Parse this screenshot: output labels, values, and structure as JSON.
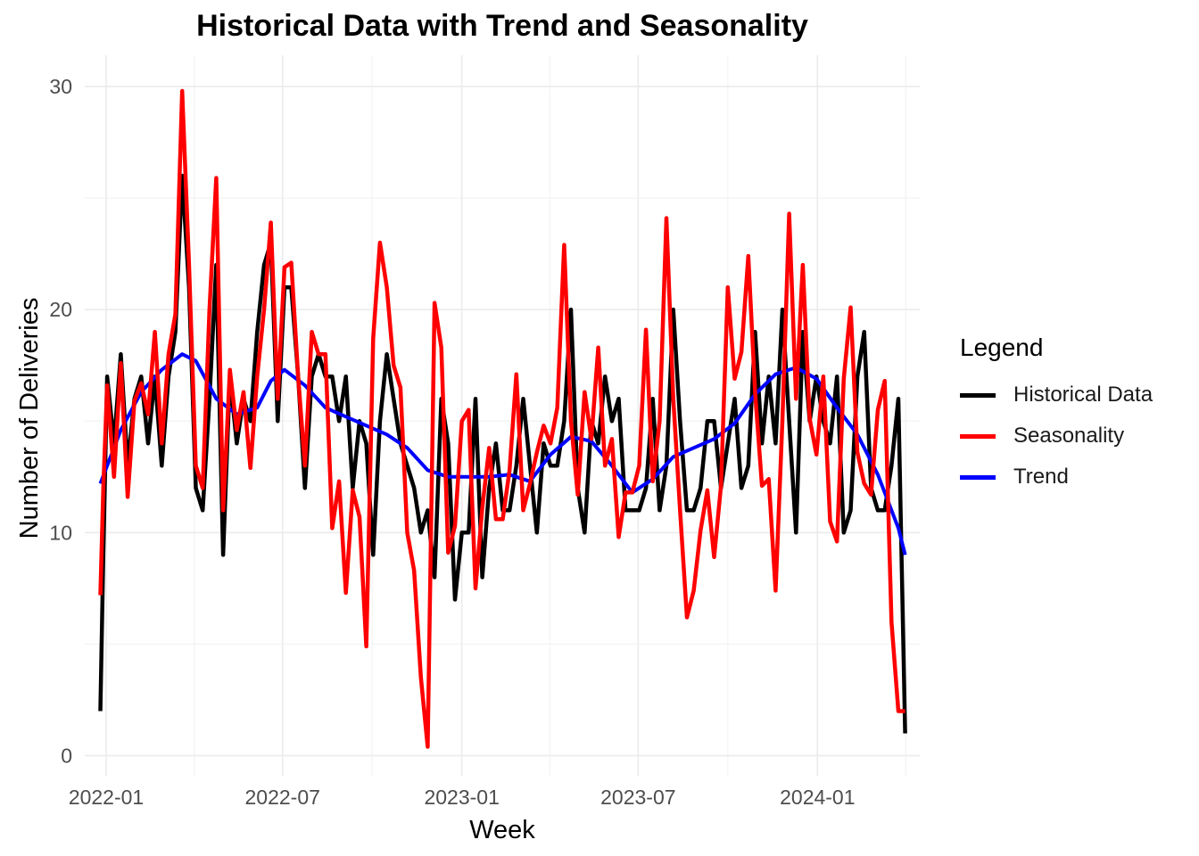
{
  "chart_data": {
    "type": "line",
    "title": "Historical Data with Trend and Seasonality",
    "xlabel": "Week",
    "ylabel": "Number of Deliveries",
    "x_ticks": [
      "2022-01",
      "2022-07",
      "2023-01",
      "2023-07",
      "2024-01"
    ],
    "y_ticks": [
      0,
      10,
      20,
      30
    ],
    "ylim": [
      -0.9,
      31.4
    ],
    "xlim": [
      "2021-12-10",
      "2024-04-15"
    ],
    "grid": true,
    "legend": {
      "title": "Legend",
      "placement": "right",
      "entries": [
        "Historical Data",
        "Seasonality",
        "Trend"
      ]
    },
    "series": [
      {
        "name": "Historical Data",
        "color": "#000000",
        "points": [
          [
            "2021-12-26",
            2
          ],
          [
            "2021-12-29",
            9
          ],
          [
            "2022-01-02",
            17
          ],
          [
            "2022-01-09",
            14
          ],
          [
            "2022-01-16",
            18
          ],
          [
            "2022-01-23",
            13
          ],
          [
            "2022-01-30",
            16
          ],
          [
            "2022-02-06",
            17
          ],
          [
            "2022-02-13",
            14
          ],
          [
            "2022-02-20",
            17
          ],
          [
            "2022-02-27",
            13
          ],
          [
            "2022-03-06",
            17
          ],
          [
            "2022-03-13",
            19
          ],
          [
            "2022-03-20",
            26
          ],
          [
            "2022-03-27",
            21
          ],
          [
            "2022-04-03",
            12
          ],
          [
            "2022-04-10",
            11
          ],
          [
            "2022-04-17",
            16
          ],
          [
            "2022-04-24",
            22
          ],
          [
            "2022-05-01",
            9
          ],
          [
            "2022-05-08",
            17
          ],
          [
            "2022-05-15",
            14
          ],
          [
            "2022-05-22",
            16
          ],
          [
            "2022-05-29",
            15
          ],
          [
            "2022-06-05",
            19
          ],
          [
            "2022-06-12",
            22
          ],
          [
            "2022-06-19",
            23
          ],
          [
            "2022-06-26",
            15
          ],
          [
            "2022-07-03",
            21
          ],
          [
            "2022-07-10",
            21
          ],
          [
            "2022-07-17",
            17
          ],
          [
            "2022-07-24",
            12
          ],
          [
            "2022-07-31",
            17
          ],
          [
            "2022-08-07",
            18
          ],
          [
            "2022-08-14",
            17
          ],
          [
            "2022-08-21",
            17
          ],
          [
            "2022-08-28",
            15
          ],
          [
            "2022-09-04",
            17
          ],
          [
            "2022-09-11",
            12
          ],
          [
            "2022-09-18",
            15
          ],
          [
            "2022-09-25",
            14
          ],
          [
            "2022-10-02",
            9
          ],
          [
            "2022-10-09",
            15
          ],
          [
            "2022-10-16",
            18
          ],
          [
            "2022-10-23",
            16
          ],
          [
            "2022-10-30",
            14
          ],
          [
            "2022-11-06",
            13
          ],
          [
            "2022-11-13",
            12
          ],
          [
            "2022-11-20",
            10
          ],
          [
            "2022-11-27",
            11
          ],
          [
            "2022-12-04",
            8
          ],
          [
            "2022-12-11",
            16
          ],
          [
            "2022-12-18",
            14
          ],
          [
            "2022-12-25",
            7
          ],
          [
            "2023-01-01",
            10
          ],
          [
            "2023-01-08",
            10
          ],
          [
            "2023-01-15",
            16
          ],
          [
            "2023-01-22",
            8
          ],
          [
            "2023-01-29",
            12
          ],
          [
            "2023-02-05",
            14
          ],
          [
            "2023-02-12",
            11
          ],
          [
            "2023-02-19",
            11
          ],
          [
            "2023-02-26",
            13
          ],
          [
            "2023-03-05",
            16
          ],
          [
            "2023-03-12",
            13
          ],
          [
            "2023-03-19",
            10
          ],
          [
            "2023-03-26",
            14
          ],
          [
            "2023-04-02",
            13
          ],
          [
            "2023-04-09",
            13
          ],
          [
            "2023-04-16",
            15
          ],
          [
            "2023-04-23",
            20
          ],
          [
            "2023-04-30",
            12
          ],
          [
            "2023-05-07",
            10
          ],
          [
            "2023-05-14",
            15
          ],
          [
            "2023-05-21",
            14
          ],
          [
            "2023-05-28",
            17
          ],
          [
            "2023-06-04",
            15
          ],
          [
            "2023-06-11",
            16
          ],
          [
            "2023-06-18",
            11
          ],
          [
            "2023-06-25",
            11
          ],
          [
            "2023-07-02",
            11
          ],
          [
            "2023-07-09",
            12
          ],
          [
            "2023-07-16",
            16
          ],
          [
            "2023-07-23",
            11
          ],
          [
            "2023-07-30",
            13
          ],
          [
            "2023-08-06",
            20
          ],
          [
            "2023-08-13",
            15
          ],
          [
            "2023-08-20",
            11
          ],
          [
            "2023-08-27",
            11
          ],
          [
            "2023-09-03",
            12
          ],
          [
            "2023-09-10",
            15
          ],
          [
            "2023-09-17",
            15
          ],
          [
            "2023-09-24",
            12
          ],
          [
            "2023-10-01",
            14
          ],
          [
            "2023-10-08",
            16
          ],
          [
            "2023-10-15",
            12
          ],
          [
            "2023-10-22",
            13
          ],
          [
            "2023-10-29",
            19
          ],
          [
            "2023-11-05",
            14
          ],
          [
            "2023-11-12",
            17
          ],
          [
            "2023-11-19",
            14
          ],
          [
            "2023-11-26",
            20
          ],
          [
            "2023-12-03",
            15
          ],
          [
            "2023-12-10",
            10
          ],
          [
            "2023-12-17",
            19
          ],
          [
            "2023-12-24",
            15
          ],
          [
            "2023-12-31",
            17
          ],
          [
            "2024-01-07",
            15
          ],
          [
            "2024-01-14",
            14
          ],
          [
            "2024-01-21",
            17
          ],
          [
            "2024-01-28",
            10
          ],
          [
            "2024-02-04",
            11
          ],
          [
            "2024-02-11",
            17
          ],
          [
            "2024-02-18",
            19
          ],
          [
            "2024-02-25",
            12
          ],
          [
            "2024-03-03",
            11
          ],
          [
            "2024-03-10",
            11
          ],
          [
            "2024-03-17",
            13
          ],
          [
            "2024-03-24",
            16
          ],
          [
            "2024-03-31",
            1
          ]
        ]
      },
      {
        "name": "Seasonality",
        "color": "#ff0000",
        "points": [
          [
            "2021-12-26",
            7.2
          ],
          [
            "2021-12-29",
            12
          ],
          [
            "2022-01-02",
            16.6
          ],
          [
            "2022-01-09",
            12.5
          ],
          [
            "2022-01-16",
            17.6
          ],
          [
            "2022-01-23",
            11.6
          ],
          [
            "2022-01-30",
            15.9
          ],
          [
            "2022-02-06",
            16.7
          ],
          [
            "2022-02-13",
            15.3
          ],
          [
            "2022-02-20",
            19
          ],
          [
            "2022-02-27",
            14
          ],
          [
            "2022-03-06",
            18
          ],
          [
            "2022-03-13",
            19.8
          ],
          [
            "2022-03-20",
            29.8
          ],
          [
            "2022-03-27",
            22
          ],
          [
            "2022-04-03",
            13
          ],
          [
            "2022-04-10",
            12
          ],
          [
            "2022-04-17",
            20
          ],
          [
            "2022-04-24",
            25.9
          ],
          [
            "2022-05-01",
            11
          ],
          [
            "2022-05-08",
            17.3
          ],
          [
            "2022-05-15",
            14.6
          ],
          [
            "2022-05-22",
            16.3
          ],
          [
            "2022-05-29",
            12.9
          ],
          [
            "2022-06-05",
            17
          ],
          [
            "2022-06-12",
            20
          ],
          [
            "2022-06-19",
            23.9
          ],
          [
            "2022-06-26",
            16
          ],
          [
            "2022-07-03",
            21.9
          ],
          [
            "2022-07-10",
            22.1
          ],
          [
            "2022-07-17",
            17
          ],
          [
            "2022-07-24",
            13
          ],
          [
            "2022-07-31",
            19
          ],
          [
            "2022-08-07",
            18
          ],
          [
            "2022-08-14",
            18
          ],
          [
            "2022-08-21",
            10.2
          ],
          [
            "2022-08-28",
            12.3
          ],
          [
            "2022-09-04",
            7.3
          ],
          [
            "2022-09-11",
            11.9
          ],
          [
            "2022-09-18",
            10.7
          ],
          [
            "2022-09-25",
            4.9
          ],
          [
            "2022-10-02",
            18.7
          ],
          [
            "2022-10-09",
            23
          ],
          [
            "2022-10-16",
            21
          ],
          [
            "2022-10-23",
            17.5
          ],
          [
            "2022-10-30",
            16.5
          ],
          [
            "2022-11-06",
            10
          ],
          [
            "2022-11-13",
            8.3
          ],
          [
            "2022-11-20",
            3.5
          ],
          [
            "2022-11-27",
            0.4
          ],
          [
            "2022-12-04",
            20.3
          ],
          [
            "2022-12-11",
            18.3
          ],
          [
            "2022-12-18",
            9.1
          ],
          [
            "2022-12-25",
            10.3
          ],
          [
            "2023-01-01",
            15
          ],
          [
            "2023-01-08",
            15.5
          ],
          [
            "2023-01-15",
            7.5
          ],
          [
            "2023-01-22",
            11.1
          ],
          [
            "2023-01-29",
            13.8
          ],
          [
            "2023-02-05",
            10.6
          ],
          [
            "2023-02-12",
            10.6
          ],
          [
            "2023-02-19",
            12.8
          ],
          [
            "2023-02-26",
            17.1
          ],
          [
            "2023-03-05",
            11
          ],
          [
            "2023-03-12",
            12.2
          ],
          [
            "2023-03-19",
            13.6
          ],
          [
            "2023-03-26",
            14.8
          ],
          [
            "2023-04-02",
            14
          ],
          [
            "2023-04-09",
            15.6
          ],
          [
            "2023-04-16",
            22.9
          ],
          [
            "2023-04-23",
            15
          ],
          [
            "2023-04-30",
            11.7
          ],
          [
            "2023-05-07",
            16.3
          ],
          [
            "2023-05-14",
            14.2
          ],
          [
            "2023-05-21",
            18.3
          ],
          [
            "2023-05-28",
            13
          ],
          [
            "2023-06-04",
            14.2
          ],
          [
            "2023-06-11",
            9.8
          ],
          [
            "2023-06-18",
            11.8
          ],
          [
            "2023-06-25",
            11.8
          ],
          [
            "2023-07-02",
            13
          ],
          [
            "2023-07-09",
            19.1
          ],
          [
            "2023-07-16",
            12.3
          ],
          [
            "2023-07-23",
            15
          ],
          [
            "2023-07-30",
            24.1
          ],
          [
            "2023-08-06",
            16
          ],
          [
            "2023-08-13",
            11
          ],
          [
            "2023-08-20",
            6.2
          ],
          [
            "2023-08-27",
            7.4
          ],
          [
            "2023-09-03",
            10.1
          ],
          [
            "2023-09-10",
            11.9
          ],
          [
            "2023-09-17",
            8.9
          ],
          [
            "2023-09-24",
            12.1
          ],
          [
            "2023-10-01",
            21
          ],
          [
            "2023-10-08",
            16.9
          ],
          [
            "2023-10-15",
            18.1
          ],
          [
            "2023-10-22",
            22.4
          ],
          [
            "2023-10-29",
            16.3
          ],
          [
            "2023-11-05",
            12.1
          ],
          [
            "2023-11-12",
            12.4
          ],
          [
            "2023-11-19",
            7.4
          ],
          [
            "2023-11-26",
            15
          ],
          [
            "2023-12-03",
            24.3
          ],
          [
            "2023-12-10",
            16
          ],
          [
            "2023-12-17",
            22
          ],
          [
            "2023-12-24",
            15.1
          ],
          [
            "2023-12-31",
            13.5
          ],
          [
            "2024-01-07",
            17
          ],
          [
            "2024-01-14",
            10.5
          ],
          [
            "2024-01-21",
            9.6
          ],
          [
            "2024-01-28",
            16.9
          ],
          [
            "2024-02-04",
            20.1
          ],
          [
            "2024-02-11",
            13.6
          ],
          [
            "2024-02-18",
            12.2
          ],
          [
            "2024-02-25",
            11.7
          ],
          [
            "2024-03-03",
            15.5
          ],
          [
            "2024-03-10",
            16.8
          ],
          [
            "2024-03-17",
            6
          ],
          [
            "2024-03-24",
            2
          ],
          [
            "2024-03-31",
            2
          ]
        ]
      },
      {
        "name": "Trend",
        "color": "#0000ff",
        "points": [
          [
            "2021-12-26",
            12.2
          ],
          [
            "2022-01-16",
            14.6
          ],
          [
            "2022-02-06",
            16.3
          ],
          [
            "2022-02-27",
            17.3
          ],
          [
            "2022-03-20",
            18
          ],
          [
            "2022-04-03",
            17.7
          ],
          [
            "2022-04-24",
            16
          ],
          [
            "2022-05-15",
            15.3
          ],
          [
            "2022-06-05",
            15.6
          ],
          [
            "2022-06-19",
            16.8
          ],
          [
            "2022-07-03",
            17.3
          ],
          [
            "2022-07-24",
            16.6
          ],
          [
            "2022-08-14",
            15.6
          ],
          [
            "2022-09-04",
            15.2
          ],
          [
            "2022-09-25",
            14.8
          ],
          [
            "2022-10-16",
            14.4
          ],
          [
            "2022-11-06",
            13.8
          ],
          [
            "2022-11-27",
            12.8
          ],
          [
            "2022-12-18",
            12.5
          ],
          [
            "2023-01-08",
            12.5
          ],
          [
            "2023-01-29",
            12.5
          ],
          [
            "2023-02-19",
            12.6
          ],
          [
            "2023-03-12",
            12.3
          ],
          [
            "2023-04-02",
            13.5
          ],
          [
            "2023-04-23",
            14.3
          ],
          [
            "2023-05-14",
            14.1
          ],
          [
            "2023-06-04",
            13
          ],
          [
            "2023-06-25",
            11.8
          ],
          [
            "2023-07-16",
            12.4
          ],
          [
            "2023-08-06",
            13.4
          ],
          [
            "2023-08-27",
            13.8
          ],
          [
            "2023-09-17",
            14.2
          ],
          [
            "2023-10-08",
            14.9
          ],
          [
            "2023-10-29",
            16.2
          ],
          [
            "2023-11-19",
            17.1
          ],
          [
            "2023-12-10",
            17.4
          ],
          [
            "2023-12-31",
            16.9
          ],
          [
            "2024-01-21",
            15.6
          ],
          [
            "2024-02-11",
            14.4
          ],
          [
            "2024-03-03",
            12.6
          ],
          [
            "2024-03-24",
            10.2
          ],
          [
            "2024-03-31",
            9
          ]
        ]
      }
    ]
  }
}
